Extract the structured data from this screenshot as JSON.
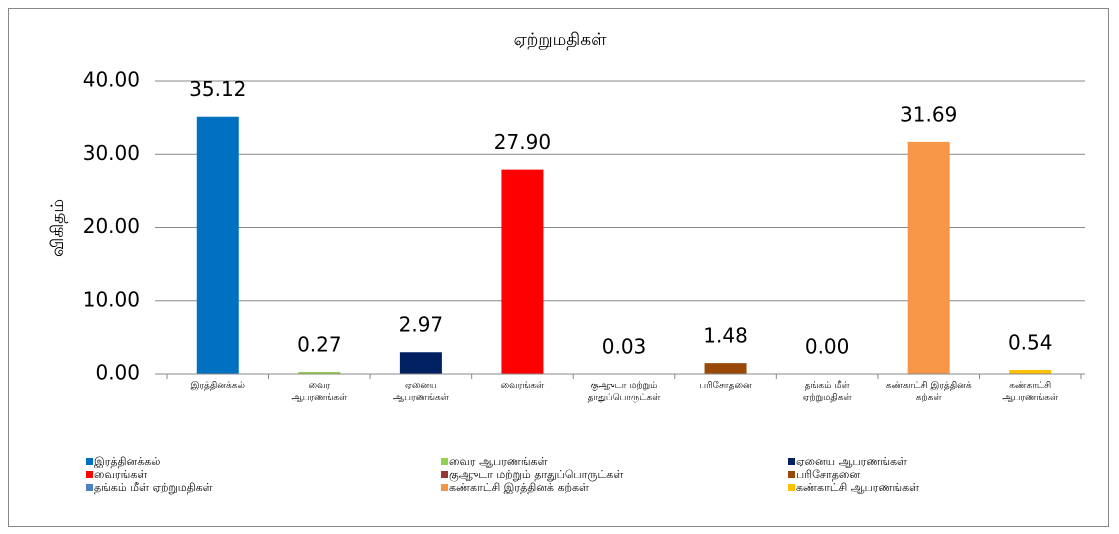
{
  "chart_data": {
    "type": "bar",
    "title": "ஏற்றுமதிகள்",
    "y_label": "விகிதம்",
    "categories": [
      "இரத்தினக்கல்",
      "வைர ஆபரணங்கள்",
      "ஏனைய ஆபரணங்கள்",
      "வைரங்கள்",
      "குஆுடா மற்றும் தாதுப்பொருட்கள்",
      "பரிசோதனை",
      "தங்கம் மீள் ஏற்றுமதிகள்",
      "கண்காட்சி இரத்தினக் கற்கள்",
      "கண்காட்சி ஆபரணங்கள்"
    ],
    "values": [
      35.12,
      0.27,
      2.97,
      27.9,
      0.03,
      1.48,
      0,
      31.69,
      0.54
    ],
    "value_labels": [
      "35.12",
      "0.27",
      "2.97",
      "27.90",
      "0.03",
      "1.48",
      "0.00",
      "31.69",
      "0.54"
    ],
    "colors": [
      "#0070c0",
      "#92d050",
      "#002060",
      "#ff0000",
      "#953735",
      "#984807",
      "#4f81bd",
      "#f79646",
      "#ffc000"
    ],
    "ylim": [
      0,
      40
    ],
    "yticks": [
      {
        "value": 0,
        "label": "0.00"
      },
      {
        "value": 10,
        "label": "10.00"
      },
      {
        "value": 20,
        "label": "20.00"
      },
      {
        "value": 30,
        "label": "30.00"
      },
      {
        "value": 40,
        "label": "40.00"
      }
    ],
    "grid": true,
    "legend": "bottom"
  }
}
